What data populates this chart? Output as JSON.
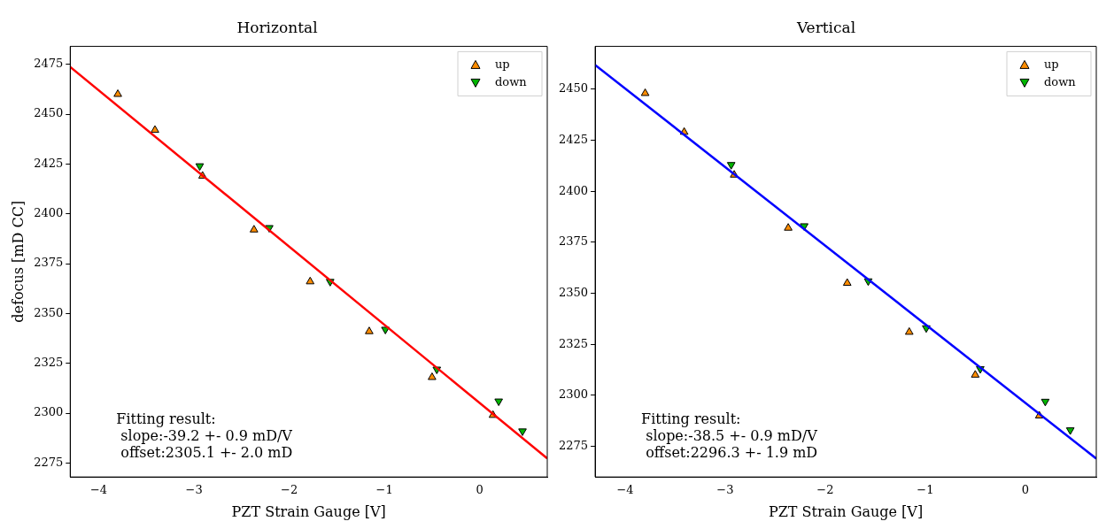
{
  "chart_data": [
    {
      "type": "scatter",
      "title": "Horizontal",
      "xlabel": "PZT Strain Gauge [V]",
      "ylabel": "defocus [mD CC]",
      "xlim": [
        -4.3,
        0.71
      ],
      "xticks": [
        {
          "value": -4,
          "label": "−4"
        },
        {
          "value": -3,
          "label": "−3"
        },
        {
          "value": -2,
          "label": "−2"
        },
        {
          "value": -1,
          "label": "−1"
        },
        0
      ],
      "ylim": [
        2268,
        2484
      ],
      "yticks": [
        2275,
        2300,
        2325,
        2350,
        2375,
        2400,
        2425,
        2450,
        2475
      ],
      "legend": "top right",
      "grid": false,
      "series": [
        {
          "name": "up",
          "color": "#ff8c00",
          "marker": "triangle",
          "x": [
            -3.8,
            -3.41,
            -2.91,
            -2.37,
            -1.78,
            -1.16,
            -0.5,
            0.14
          ],
          "values": [
            2460,
            2442,
            2419,
            2392,
            2366,
            2341,
            2318,
            2299
          ]
        },
        {
          "name": "down",
          "color": "#00b400",
          "marker": "triangle-down",
          "x": [
            -2.94,
            -2.21,
            -1.57,
            -0.99,
            -0.45,
            0.2,
            0.45
          ],
          "values": [
            2424,
            2393,
            2366,
            2342,
            2322,
            2306,
            2291
          ]
        },
        {
          "type": "line",
          "color": "#ff0000",
          "marker": "none",
          "x": [
            -4.3,
            0.71
          ],
          "values": [
            2473.7,
            2277.3
          ]
        }
      ],
      "annotations": [
        "Fitting result:\n slope:-39.2 +- 0.9 mD/V\n offset:2305.1 +- 2.0 mD"
      ]
    },
    {
      "type": "scatter",
      "title": "Vertical",
      "xlabel": "PZT Strain Gauge [V]",
      "xlim": [
        -4.3,
        0.71
      ],
      "xticks": [
        {
          "value": -4,
          "label": "−4"
        },
        {
          "value": -3,
          "label": "−3"
        },
        {
          "value": -2,
          "label": "−2"
        },
        {
          "value": -1,
          "label": "−1"
        },
        0
      ],
      "ylim": [
        2260,
        2471
      ],
      "yticks": [
        2275,
        2300,
        2325,
        2350,
        2375,
        2400,
        2425,
        2450
      ],
      "legend": "top right",
      "grid": false,
      "series": [
        {
          "name": "up",
          "color": "#ff8c00",
          "marker": "triangle",
          "x": [
            -3.8,
            -3.41,
            -2.91,
            -2.37,
            -1.78,
            -1.16,
            -0.5,
            0.14
          ],
          "values": [
            2448,
            2429,
            2408,
            2382,
            2355,
            2331,
            2310,
            2290
          ]
        },
        {
          "name": "down",
          "color": "#00b400",
          "marker": "triangle-down",
          "x": [
            -2.94,
            -2.21,
            -1.57,
            -0.99,
            -0.45,
            0.2,
            0.45
          ],
          "values": [
            2413,
            2383,
            2356,
            2333,
            2313,
            2297,
            2283
          ]
        },
        {
          "type": "line",
          "color": "#0000ff",
          "marker": "none",
          "x": [
            -4.3,
            0.71
          ],
          "values": [
            2461.9,
            2269
          ]
        }
      ],
      "annotations": [
        "Fitting result:\n slope:-38.5 +- 0.9 mD/V\n offset:2296.3 +- 1.9 mD"
      ]
    }
  ]
}
